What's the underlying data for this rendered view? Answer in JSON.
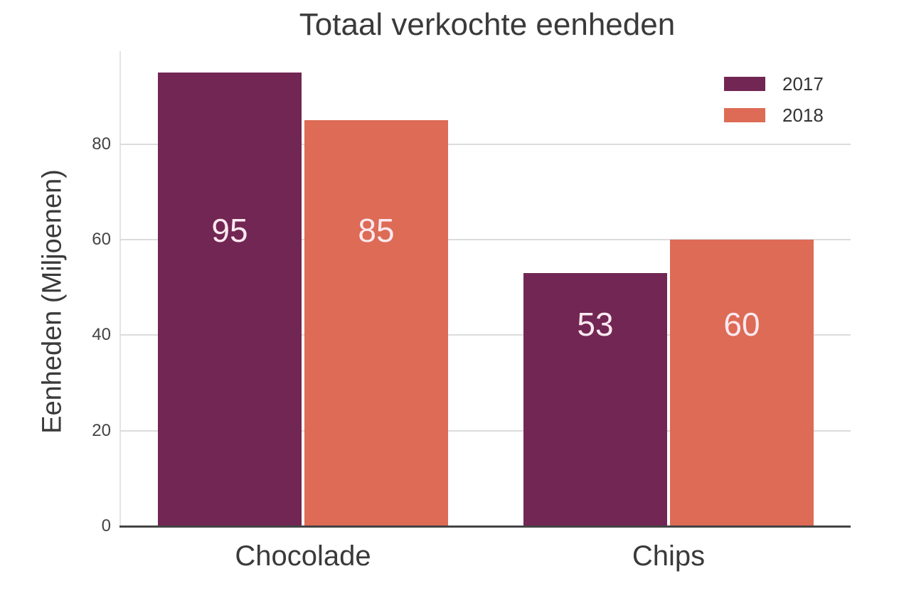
{
  "chart_data": {
    "type": "bar",
    "title": "Totaal verkochte eenheden",
    "xlabel": "",
    "ylabel": "Eenheden (Miljoenen)",
    "categories": [
      "Chocolade",
      "Chips"
    ],
    "series": [
      {
        "name": "2017",
        "values": [
          95,
          53
        ],
        "color": "#722653"
      },
      {
        "name": "2018",
        "values": [
          85,
          60
        ],
        "color": "#dd6b55"
      }
    ],
    "ylim": [
      0,
      100
    ],
    "yticks": [
      0,
      20,
      40,
      60,
      80
    ],
    "grid": "horizontal",
    "legend_position": "upper right",
    "data_labels": [
      [
        "95",
        "53"
      ],
      [
        "85",
        "60"
      ]
    ]
  }
}
